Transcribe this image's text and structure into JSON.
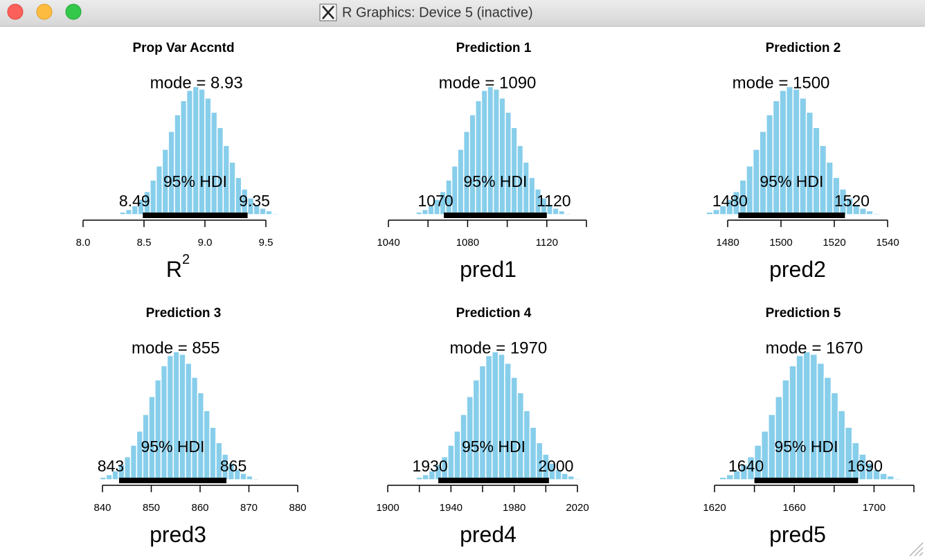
{
  "window": {
    "title": "R Graphics: Device 5 (inactive)"
  },
  "chart_data": [
    {
      "type": "histogram",
      "title": "Prop Var Accntd",
      "xlabel": "R",
      "xlabel_superscript": "2",
      "color": "#87ceeb",
      "xlim": [
        8.0,
        9.5
      ],
      "xticks": [
        {
          "value": 8,
          "label": "8.0"
        },
        8.5,
        {
          "value": 9,
          "label": "9.0"
        },
        9.5
      ],
      "bins": [
        8.3,
        8.35,
        8.4,
        8.45,
        8.5,
        8.55,
        8.6,
        8.65,
        8.7,
        8.75,
        8.8,
        8.85,
        8.9,
        8.95,
        9.0,
        9.05,
        9.1,
        9.15,
        9.2,
        9.25,
        9.3,
        9.35,
        9.4,
        9.45,
        9.5,
        9.55,
        9.6
      ],
      "counts": [
        2,
        4,
        7,
        12,
        18,
        27,
        38,
        51,
        65,
        78,
        89,
        97,
        100,
        98,
        91,
        80,
        68,
        54,
        41,
        29,
        20,
        13,
        8,
        5,
        3,
        1
      ],
      "mode": 8.93,
      "mode_label": "mode = 8.93",
      "hdi_label": "95% HDI",
      "hdi": [
        8.49,
        9.35
      ],
      "hdi_labels": [
        "8.49",
        "9.35"
      ]
    },
    {
      "type": "histogram",
      "title": "Prediction 1",
      "xlabel": "pred1",
      "color": "#87ceeb",
      "xlim": [
        1040,
        1140
      ],
      "xticks": [
        1040,
        1080,
        1120
      ],
      "xticks_unlabeled": [
        1060,
        1100,
        1140
      ],
      "bins": [
        1054,
        1057,
        1060,
        1063,
        1066,
        1069,
        1072,
        1075,
        1078,
        1081,
        1084,
        1087,
        1090,
        1093,
        1096,
        1099,
        1102,
        1105,
        1108,
        1111,
        1114,
        1117,
        1120,
        1123,
        1126,
        1129,
        1132
      ],
      "counts": [
        2,
        4,
        7,
        12,
        18,
        27,
        38,
        51,
        65,
        78,
        89,
        97,
        100,
        98,
        91,
        80,
        68,
        54,
        41,
        29,
        20,
        13,
        8,
        5,
        3,
        1
      ],
      "mode": 1090,
      "mode_label": "mode = 1090",
      "hdi_label": "95% HDI",
      "hdi": [
        1068,
        1120
      ],
      "hdi_labels": [
        "1070",
        "1120"
      ]
    },
    {
      "type": "histogram",
      "title": "Prediction 2",
      "xlabel": "pred2",
      "color": "#87ceeb",
      "xlim": [
        1480,
        1540
      ],
      "xticks": [
        1480,
        1500,
        1520,
        1540
      ],
      "bins": [
        1472,
        1474.5,
        1477,
        1479.5,
        1482,
        1484.5,
        1487,
        1489.5,
        1492,
        1494.5,
        1497,
        1499.5,
        1502,
        1504.5,
        1507,
        1509.5,
        1512,
        1514.5,
        1517,
        1519.5,
        1522,
        1524.5,
        1527,
        1529.5,
        1532,
        1534.5,
        1537
      ],
      "counts": [
        2,
        4,
        7,
        12,
        18,
        27,
        38,
        51,
        65,
        78,
        89,
        97,
        100,
        98,
        91,
        80,
        68,
        54,
        41,
        29,
        20,
        13,
        8,
        5,
        3,
        1
      ],
      "mode": 1500,
      "mode_label": "mode = 1500",
      "hdi_label": "95% HDI",
      "hdi": [
        1484,
        1524
      ],
      "hdi_labels": [
        "1480",
        "1520"
      ]
    },
    {
      "type": "histogram",
      "title": "Prediction 3",
      "xlabel": "pred3",
      "color": "#87ceeb",
      "xlim": [
        840,
        880
      ],
      "xticks": [
        840,
        850,
        860,
        870,
        880
      ],
      "bins": [
        839.5,
        840.75,
        842,
        843.25,
        844.5,
        845.75,
        847,
        848.25,
        849.5,
        850.75,
        852,
        853.25,
        854.5,
        855.75,
        857,
        858.25,
        859.5,
        860.75,
        862,
        863.25,
        864.5,
        865.75,
        867,
        868.25,
        869.5,
        870.75,
        872
      ],
      "counts": [
        2,
        4,
        7,
        12,
        18,
        27,
        38,
        51,
        65,
        78,
        89,
        97,
        100,
        98,
        91,
        80,
        68,
        54,
        41,
        29,
        20,
        13,
        8,
        5,
        3,
        1
      ],
      "mode": 855,
      "mode_label": "mode = 855",
      "hdi_label": "95% HDI",
      "hdi": [
        843.4,
        865.4
      ],
      "hdi_labels": [
        "843",
        "865"
      ]
    },
    {
      "type": "histogram",
      "title": "Prediction 4",
      "xlabel": "pred4",
      "color": "#87ceeb",
      "xlim": [
        1900,
        2020
      ],
      "xticks": [
        1900,
        1940,
        1980,
        2020
      ],
      "xticks_unlabeled": [
        1920,
        1960,
        2000
      ],
      "bins": [
        1918,
        1922,
        1926,
        1930,
        1934,
        1938,
        1942,
        1946,
        1950,
        1954,
        1958,
        1962,
        1966,
        1970,
        1974,
        1978,
        1982,
        1986,
        1990,
        1994,
        1998,
        2002,
        2006,
        2010,
        2014,
        2018,
        2022
      ],
      "counts": [
        2,
        4,
        7,
        12,
        18,
        27,
        38,
        51,
        65,
        78,
        89,
        97,
        100,
        98,
        91,
        80,
        68,
        54,
        41,
        29,
        20,
        13,
        8,
        5,
        3,
        1
      ],
      "mode": 1970,
      "mode_label": "mode = 1970",
      "hdi_label": "95% HDI",
      "hdi": [
        1932,
        2002
      ],
      "hdi_labels": [
        "1930",
        "2000"
      ]
    },
    {
      "type": "histogram",
      "title": "Prediction 5",
      "xlabel": "pred5",
      "color": "#87ceeb",
      "xlim": [
        1620,
        1720
      ],
      "xticks": [
        1620,
        1660,
        1700
      ],
      "xticks_unlabeled": [
        1640,
        1680,
        1720
      ],
      "bins": [
        1622.5,
        1626,
        1629.5,
        1633,
        1636.5,
        1640,
        1643.5,
        1647,
        1650.5,
        1654,
        1657.5,
        1661,
        1664.5,
        1668,
        1671.5,
        1675,
        1678.5,
        1682,
        1685.5,
        1689,
        1692.5,
        1696,
        1699.5,
        1703,
        1706.5,
        1710,
        1713.5
      ],
      "counts": [
        2,
        4,
        7,
        12,
        18,
        27,
        38,
        51,
        65,
        78,
        89,
        97,
        100,
        98,
        91,
        80,
        68,
        54,
        41,
        29,
        20,
        13,
        8,
        5,
        3,
        1
      ],
      "mode": 1670,
      "mode_label": "mode = 1670",
      "hdi_label": "95% HDI",
      "hdi": [
        1640,
        1692
      ],
      "hdi_labels": [
        "1640",
        "1690"
      ]
    }
  ]
}
